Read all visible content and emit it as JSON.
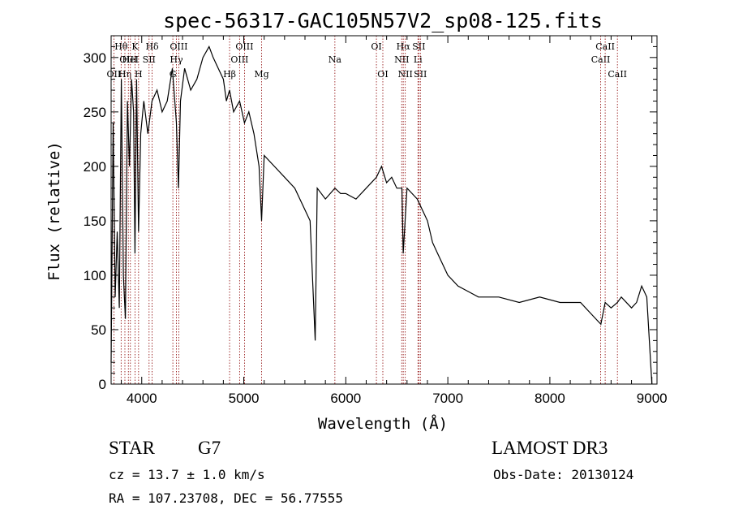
{
  "chart_data": {
    "type": "line",
    "title": "spec-56317-GAC105N57V2_sp08-125.fits",
    "xlabel": "Wavelength (Å)",
    "ylabel": "Flux (relative)",
    "xlim": [
      3700,
      9050
    ],
    "ylim": [
      0,
      320
    ],
    "xticks": [
      4000,
      5000,
      6000,
      7000,
      8000,
      9000
    ],
    "yticks": [
      0,
      50,
      100,
      150,
      200,
      250,
      300
    ],
    "grid": false,
    "line_color": "#000000",
    "marker_color": "#8b0000",
    "series": [
      {
        "x": [
          3700,
          3720,
          3740,
          3760,
          3780,
          3800,
          3820,
          3840,
          3860,
          3880,
          3900,
          3920,
          3934,
          3950,
          3969,
          3990,
          4020,
          4060,
          4101,
          4150,
          4200,
          4250,
          4300,
          4340,
          4360,
          4380,
          4420,
          4480,
          4540,
          4600,
          4660,
          4700,
          4750,
          4800,
          4830,
          4861,
          4900,
          4959,
          5007,
          5050,
          5100,
          5150,
          5175,
          5200,
          5300,
          5400,
          5500,
          5550,
          5600,
          5650,
          5700,
          5720,
          5800,
          5893,
          5950,
          6000,
          6100,
          6200,
          6300,
          6350,
          6400,
          6450,
          6500,
          6550,
          6563,
          6600,
          6650,
          6700,
          6750,
          6800,
          6850,
          6900,
          6950,
          7000,
          7100,
          7200,
          7300,
          7500,
          7700,
          7900,
          8100,
          8300,
          8400,
          8450,
          8500,
          8542,
          8600,
          8662,
          8700,
          8800,
          8850,
          8900,
          8950,
          9000
        ],
        "y": [
          20,
          240,
          80,
          140,
          70,
          280,
          100,
          60,
          260,
          200,
          280,
          250,
          120,
          280,
          140,
          230,
          260,
          230,
          260,
          270,
          250,
          260,
          290,
          240,
          180,
          260,
          290,
          270,
          280,
          300,
          310,
          300,
          290,
          280,
          260,
          270,
          250,
          260,
          240,
          250,
          230,
          200,
          150,
          210,
          200,
          190,
          180,
          170,
          160,
          150,
          40,
          180,
          170,
          180,
          175,
          175,
          170,
          180,
          190,
          200,
          185,
          190,
          180,
          180,
          120,
          180,
          175,
          170,
          160,
          150,
          130,
          120,
          110,
          100,
          90,
          85,
          80,
          80,
          75,
          80,
          75,
          75,
          65,
          60,
          55,
          75,
          70,
          75,
          80,
          70,
          75,
          90,
          80,
          0
        ]
      }
    ],
    "line_markers": [
      {
        "wl": 3727,
        "label": "OII",
        "row": 2
      },
      {
        "wl": 3798,
        "label": "Hθ",
        "row": 0
      },
      {
        "wl": 3835,
        "label": "Hη",
        "row": 2
      },
      {
        "wl": 3869,
        "label": "OIII",
        "row": 1
      },
      {
        "wl": 3889,
        "label": "HeI",
        "row": 1
      },
      {
        "wl": 3934,
        "label": "K",
        "row": 0
      },
      {
        "wl": 3969,
        "label": "H",
        "row": 2
      },
      {
        "wl": 4072,
        "label": "SII",
        "row": 1
      },
      {
        "wl": 4102,
        "label": "Hδ",
        "row": 0
      },
      {
        "wl": 4305,
        "label": "G",
        "row": 2
      },
      {
        "wl": 4340,
        "label": "Hγ",
        "row": 1
      },
      {
        "wl": 4363,
        "label": "OIII",
        "row": 0
      },
      {
        "wl": 4861,
        "label": "Hβ",
        "row": 2
      },
      {
        "wl": 4959,
        "label": "OIII",
        "row": 1
      },
      {
        "wl": 5007,
        "label": "OIII",
        "row": 0
      },
      {
        "wl": 5175,
        "label": "Mg",
        "row": 2
      },
      {
        "wl": 5893,
        "label": "Na",
        "row": 1
      },
      {
        "wl": 6300,
        "label": "OI",
        "row": 0
      },
      {
        "wl": 6363,
        "label": "OI",
        "row": 2
      },
      {
        "wl": 6548,
        "label": "NII",
        "row": 1
      },
      {
        "wl": 6563,
        "label": "Hα",
        "row": 0
      },
      {
        "wl": 6583,
        "label": "NII",
        "row": 2
      },
      {
        "wl": 6707,
        "label": "Li",
        "row": 1
      },
      {
        "wl": 6716,
        "label": "SII",
        "row": 0
      },
      {
        "wl": 6731,
        "label": "SII",
        "row": 2
      },
      {
        "wl": 8498,
        "label": "CaII",
        "row": 1
      },
      {
        "wl": 8542,
        "label": "CaII",
        "row": 0
      },
      {
        "wl": 8662,
        "label": "CaII",
        "row": 2
      }
    ]
  },
  "info": {
    "object_class": "STAR",
    "subclass": "G7",
    "survey": "LAMOST DR3",
    "cz": "cz = 13.7 ± 1.0 km/s",
    "obs_date": "Obs-Date: 20130124",
    "radec": "RA = 107.23708, DEC =  56.77555"
  }
}
